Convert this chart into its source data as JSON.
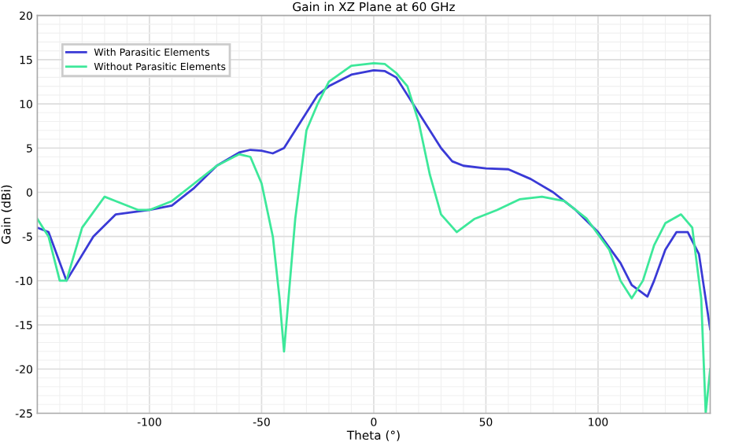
{
  "chart_data": {
    "type": "line",
    "title": "Gain in XZ Plane at 60 GHz",
    "xlabel": "Theta (°)",
    "ylabel": "Gain (dBi)",
    "xlim": [
      -150,
      150
    ],
    "ylim": [
      -25,
      20
    ],
    "xticks": [
      -100,
      -50,
      0,
      50,
      100
    ],
    "yticks": [
      -25,
      -20,
      -15,
      -10,
      -5,
      0,
      5,
      10,
      15,
      20
    ],
    "grid": true,
    "legend": "top left",
    "series": [
      {
        "name": "With Parasitic Elements",
        "color": "#3a3ad6",
        "x": [
          -150,
          -145,
          -137,
          -125,
          -115,
          -100,
          -90,
          -80,
          -70,
          -60,
          -55,
          -50,
          -45,
          -40,
          -35,
          -25,
          -20,
          -10,
          0,
          5,
          10,
          20,
          30,
          35,
          40,
          50,
          60,
          70,
          80,
          90,
          100,
          110,
          115,
          122,
          125,
          130,
          135,
          140,
          145,
          150
        ],
        "values": [
          -4,
          -4.5,
          -10,
          -5,
          -2.5,
          -2,
          -1.5,
          0.5,
          3,
          4.5,
          4.8,
          4.7,
          4.4,
          5,
          7,
          11,
          12,
          13.3,
          13.8,
          13.7,
          13,
          9,
          5,
          3.5,
          3,
          2.7,
          2.6,
          1.5,
          0,
          -2,
          -4.5,
          -8,
          -10.5,
          -11.8,
          -10,
          -6.5,
          -4.5,
          -4.5,
          -7,
          -15.5
        ]
      },
      {
        "name": "Without Parasitic Elements",
        "color": "#3de89a",
        "x": [
          -150,
          -145,
          -140,
          -137,
          -130,
          -120,
          -115,
          -105,
          -100,
          -90,
          -80,
          -70,
          -60,
          -55,
          -50,
          -45,
          -42,
          -40,
          -38,
          -35,
          -30,
          -25,
          -20,
          -10,
          0,
          5,
          10,
          15,
          20,
          25,
          30,
          37,
          45,
          55,
          65,
          75,
          85,
          95,
          105,
          110,
          115,
          120,
          125,
          130,
          137,
          142,
          146,
          148,
          150
        ],
        "values": [
          -3,
          -5,
          -10,
          -10,
          -4,
          -0.5,
          -1,
          -2,
          -2,
          -1,
          1,
          3,
          4.3,
          4,
          1,
          -5,
          -12,
          -18,
          -12,
          -3,
          7,
          10,
          12.5,
          14.3,
          14.6,
          14.5,
          13.5,
          12,
          8,
          2,
          -2.5,
          -4.5,
          -3,
          -2,
          -0.8,
          -0.5,
          -1,
          -3,
          -6.5,
          -10,
          -12,
          -10,
          -6,
          -3.5,
          -2.5,
          -4,
          -12,
          -25,
          -20
        ]
      }
    ]
  }
}
